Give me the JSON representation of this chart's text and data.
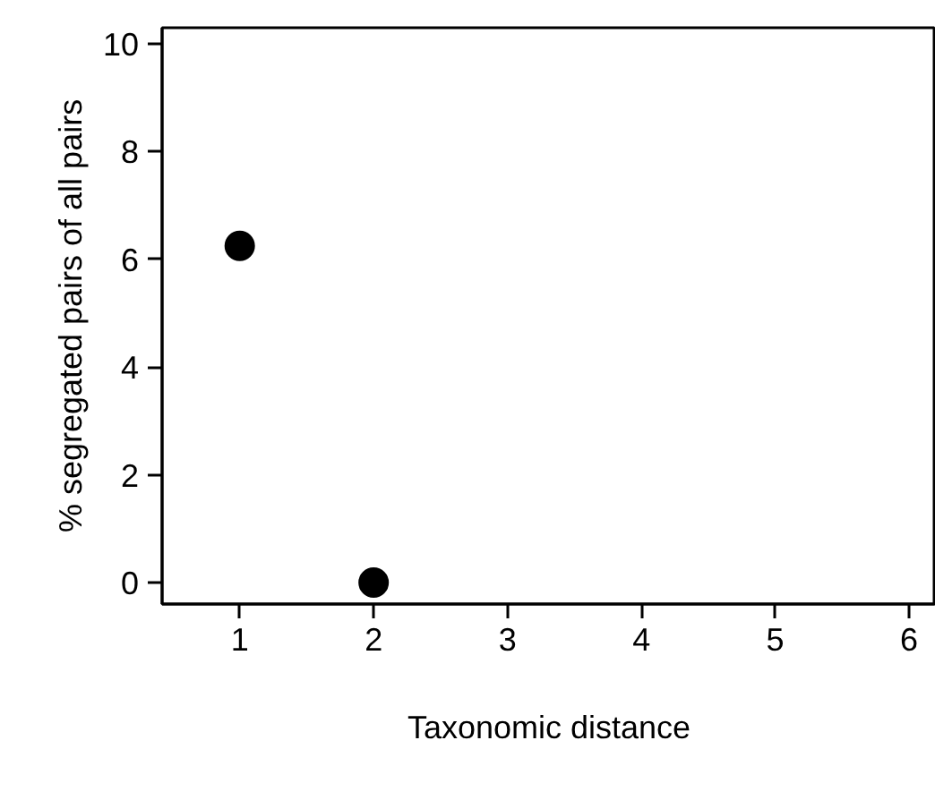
{
  "chart_data": {
    "type": "scatter",
    "xlabel": "Taxonomic distance",
    "ylabel": "% segregated pairs of all pairs",
    "x": [
      1,
      2
    ],
    "values": [
      6.25,
      0
    ],
    "color": "#000000",
    "marker": "circle",
    "xlim": [
      0.42,
      6.2
    ],
    "ylim": [
      -0.4,
      10.3
    ],
    "xticks": [
      1,
      2,
      3,
      4,
      5,
      6
    ],
    "yticks": [
      0,
      2,
      4,
      6,
      8,
      10
    ],
    "grid": false
  }
}
